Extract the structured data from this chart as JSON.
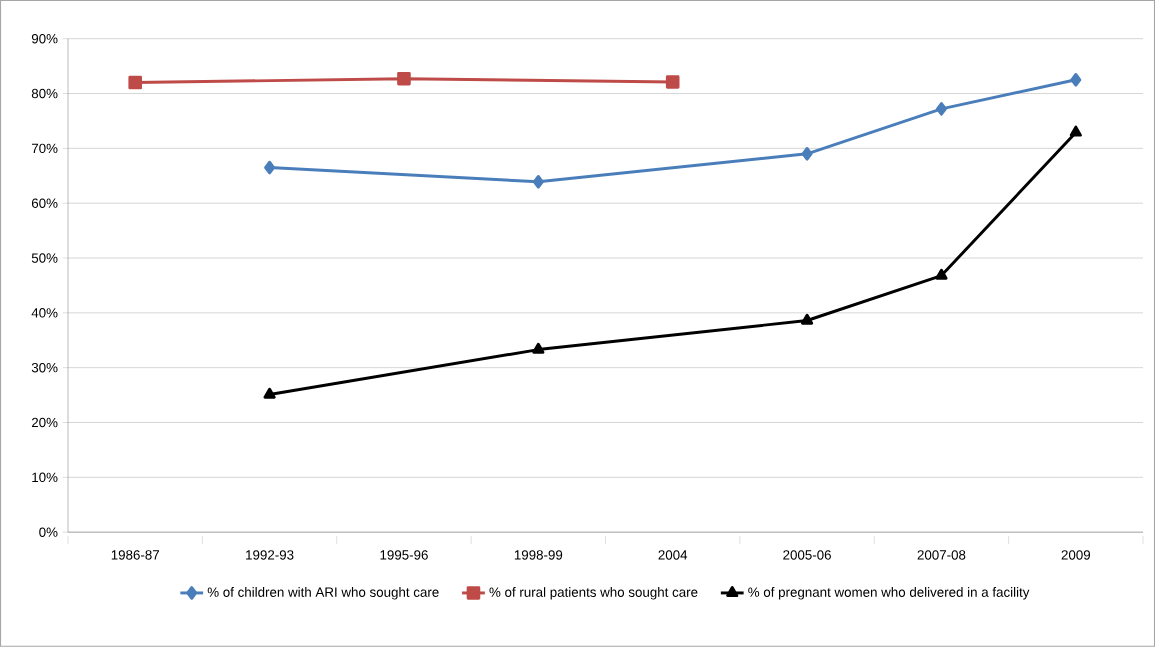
{
  "chart_data": {
    "type": "line",
    "categories": [
      "1986-87",
      "1992-93",
      "1995-96",
      "1998-99",
      "2004",
      "2005-06",
      "2007-08",
      "2009"
    ],
    "series": [
      {
        "name": "% of children with ARI who sought care",
        "color": "#4a7ebb",
        "marker": "diamond",
        "values": [
          null,
          66.5,
          null,
          63.9,
          null,
          69.0,
          77.2,
          82.5
        ]
      },
      {
        "name": "% of rural patients who sought care",
        "color": "#be4b48",
        "marker": "square",
        "values": [
          82.0,
          null,
          82.7,
          null,
          82.1,
          null,
          null,
          null
        ]
      },
      {
        "name": "% of pregnant women who delivered in a facility",
        "color": "#000000",
        "marker": "triangle",
        "values": [
          null,
          25.1,
          null,
          33.3,
          null,
          38.6,
          46.8,
          72.9
        ]
      }
    ],
    "ylim": [
      0,
      90
    ],
    "yticks": [
      {
        "value": 0,
        "label": "0%"
      },
      {
        "value": 10,
        "label": "10%"
      },
      {
        "value": 20,
        "label": "20%"
      },
      {
        "value": 30,
        "label": "30%"
      },
      {
        "value": 40,
        "label": "40%"
      },
      {
        "value": 50,
        "label": "50%"
      },
      {
        "value": 60,
        "label": "60%"
      },
      {
        "value": 70,
        "label": "70%"
      },
      {
        "value": 80,
        "label": "80%"
      },
      {
        "value": 90,
        "label": "90%"
      }
    ],
    "grid": "y",
    "legend": "bottom",
    "line_style": "solid"
  }
}
